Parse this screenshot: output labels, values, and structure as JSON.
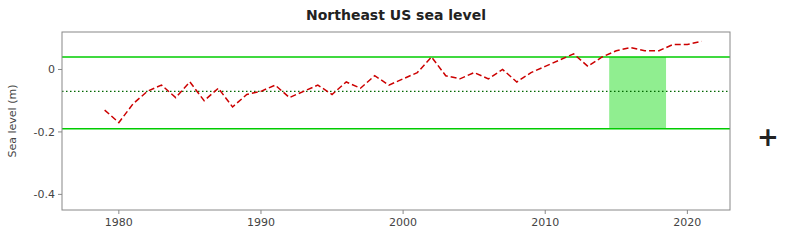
{
  "chart_data": {
    "type": "line",
    "title": "Northeast US sea level",
    "y_label": "Sea level (m)",
    "x": [
      1979,
      1980,
      1981,
      1982,
      1983,
      1984,
      1985,
      1986,
      1987,
      1988,
      1989,
      1990,
      1991,
      1992,
      1993,
      1994,
      1995,
      1996,
      1997,
      1998,
      1999,
      2000,
      2001,
      2002,
      2003,
      2004,
      2005,
      2006,
      2007,
      2008,
      2009,
      2010,
      2011,
      2012,
      2013,
      2014,
      2015,
      2016,
      2017,
      2018,
      2019,
      2020,
      2021
    ],
    "values": [
      -0.13,
      -0.17,
      -0.11,
      -0.07,
      -0.05,
      -0.09,
      -0.04,
      -0.1,
      -0.06,
      -0.12,
      -0.08,
      -0.07,
      -0.05,
      -0.09,
      -0.07,
      -0.05,
      -0.08,
      -0.04,
      -0.06,
      -0.02,
      -0.05,
      -0.03,
      -0.01,
      0.04,
      -0.02,
      -0.03,
      -0.01,
      -0.03,
      0.0,
      -0.04,
      -0.01,
      0.01,
      0.03,
      0.05,
      0.01,
      0.04,
      0.06,
      0.07,
      0.06,
      0.06,
      0.08,
      0.08,
      0.09
    ],
    "color": "#cc0000",
    "line_style": "dashed",
    "xlim": [
      1976,
      2023
    ],
    "ylim": [
      -0.45,
      0.12
    ],
    "xticks": [
      1980,
      1990,
      2000,
      2010,
      2020
    ],
    "yticks": [
      0,
      -0.2,
      -0.4
    ],
    "reference_lines": [
      {
        "y": 0.04,
        "color": "#00cc00"
      },
      {
        "y": -0.19,
        "color": "#00cc00"
      },
      {
        "y": -0.07,
        "color": "#006600",
        "line_style": "dotted"
      }
    ],
    "shaded_region": {
      "x": [
        2014.5,
        2018.5
      ],
      "y": [
        -0.19,
        0.04
      ],
      "color": "#90ee90"
    },
    "annotations": [
      {
        "text": "+"
      }
    ],
    "grid": false
  }
}
